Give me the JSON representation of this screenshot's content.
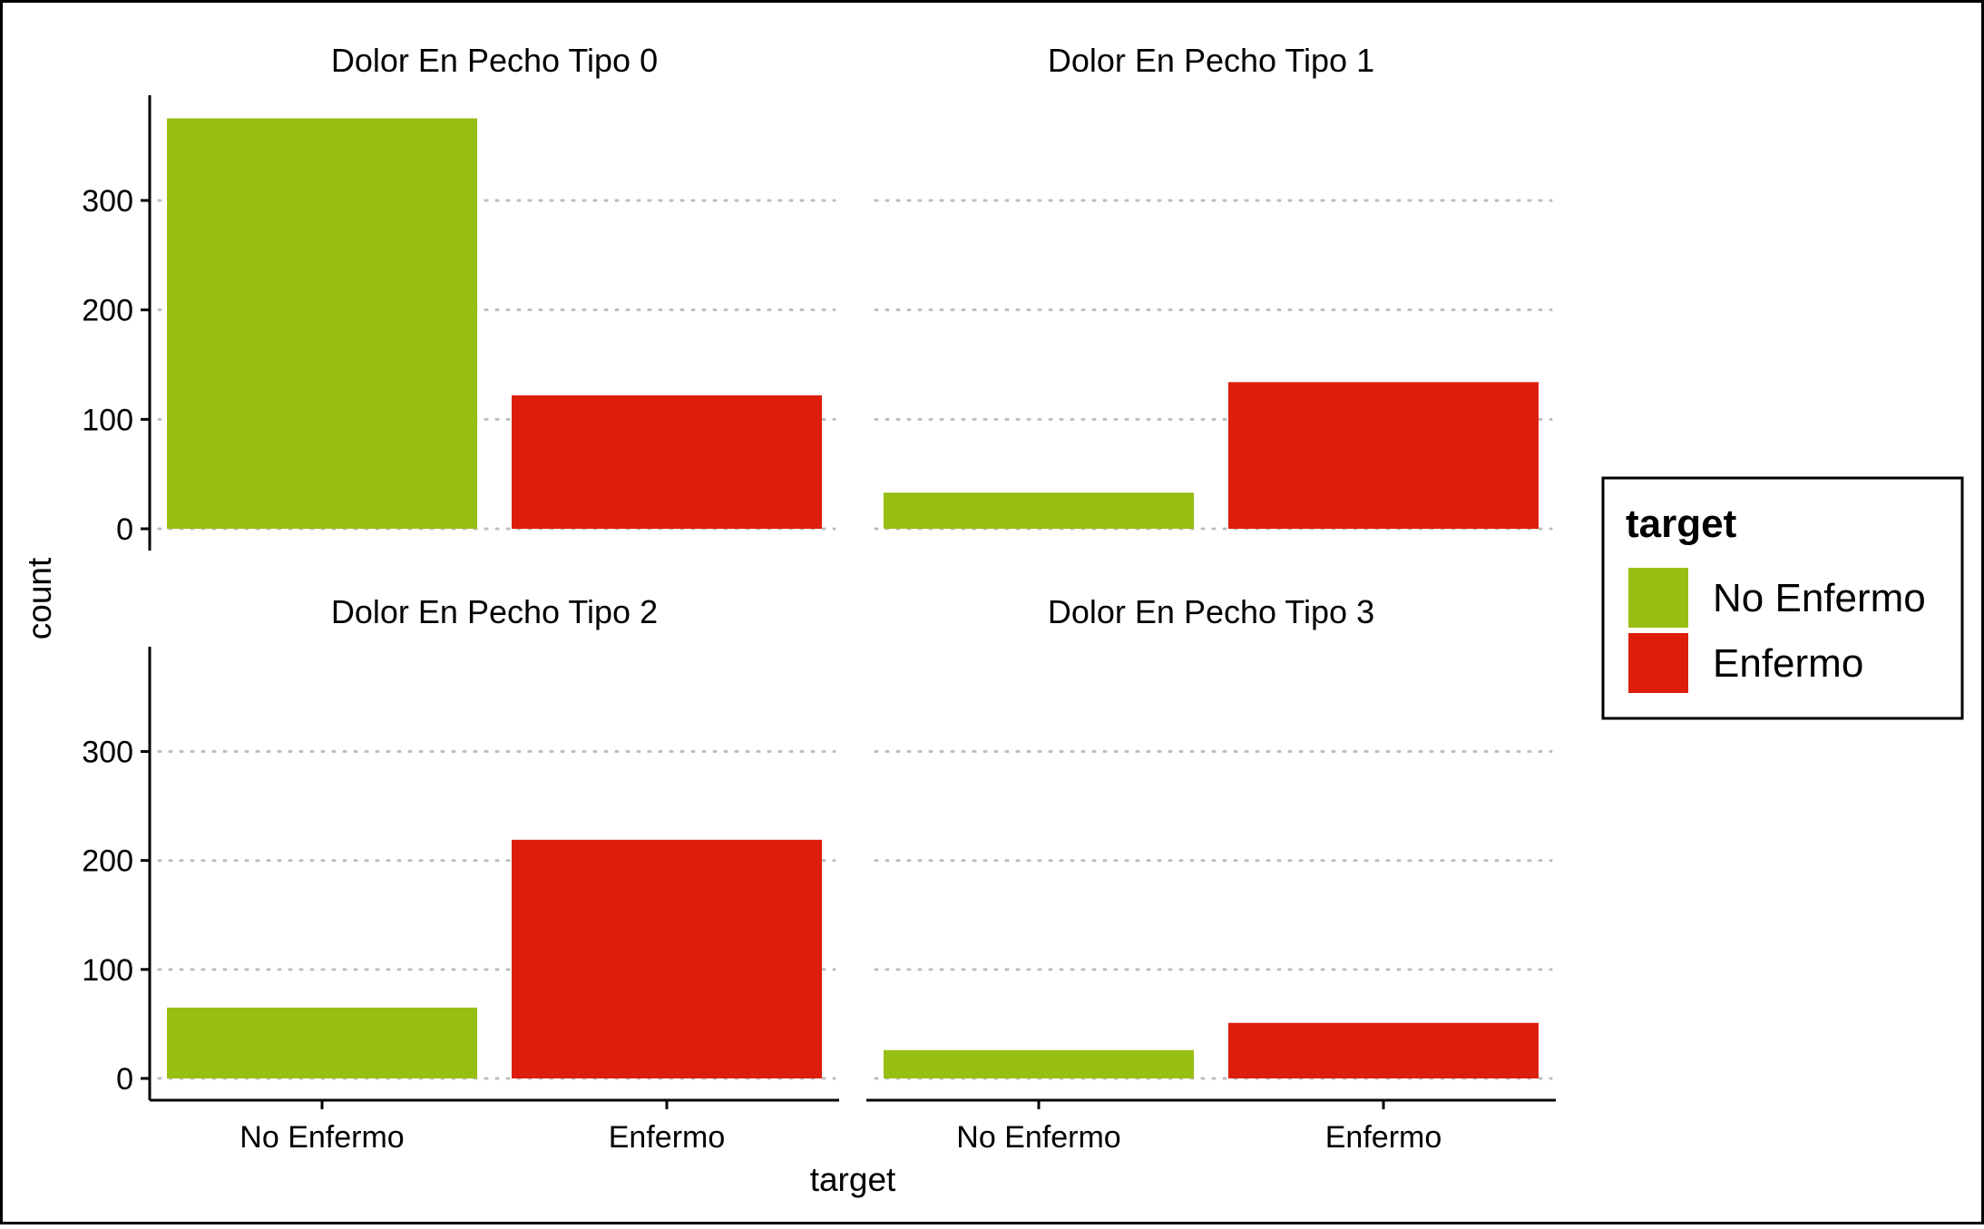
{
  "chart_data": {
    "type": "bar",
    "layout": "facet grid 2x2, shared y axis per row, shared x axis labels on bottom row",
    "categories": [
      "No Enfermo",
      "Enfermo"
    ],
    "facets": [
      {
        "title": "Dolor En Pecho Tipo 0",
        "values": [
          375,
          122
        ]
      },
      {
        "title": "Dolor En Pecho Tipo 1",
        "values": [
          33,
          134
        ]
      },
      {
        "title": "Dolor En Pecho Tipo 2",
        "values": [
          65,
          219
        ]
      },
      {
        "title": "Dolor En Pecho Tipo 3",
        "values": [
          26,
          51
        ]
      }
    ],
    "xlabel": "target",
    "ylabel": "count",
    "ylim": [
      0,
      392
    ],
    "yticks": [
      0,
      100,
      200,
      300
    ],
    "grid": "horizontal dotted major gridlines",
    "legend": {
      "title": "target",
      "position": "right",
      "entries": [
        {
          "label": "No Enfermo",
          "color": "#97BE12"
        },
        {
          "label": "Enfermo",
          "color": "#DC1E0B"
        }
      ]
    }
  }
}
